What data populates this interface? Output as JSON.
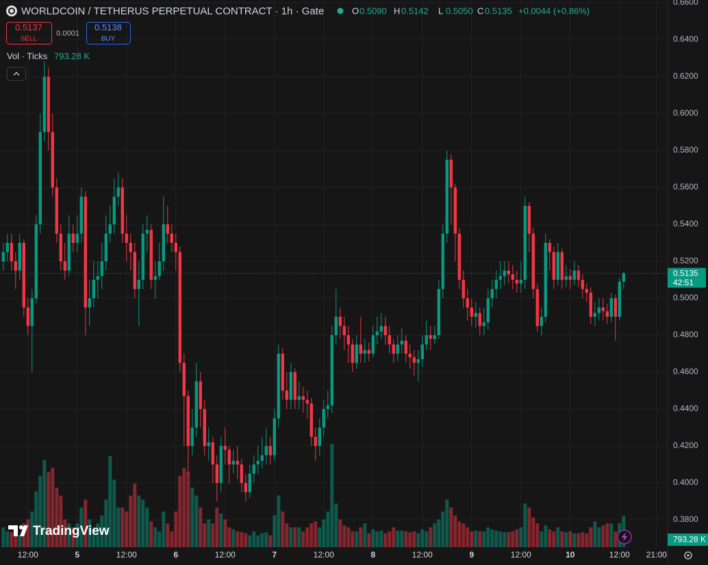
{
  "chart_data": {
    "type": "candlestick",
    "title": "WORLDCOIN / TETHERUS PERPETUAL CONTRACT · 1h · Gate",
    "ohlc_letters": [
      "O",
      "H",
      "L",
      "C"
    ],
    "ohlc_labels": [
      "0.5090",
      "0.5142",
      "0.5050",
      "0.5135"
    ],
    "change": "+0.0044 (+0.86%)",
    "sell_price": "0.5137",
    "sell": "SELL",
    "spread": "0.0001",
    "buy_price": "0.5138",
    "buy": "BUY",
    "volume_title": "Vol · Ticks",
    "volume_label": "793.28 K",
    "countdown": "42:51",
    "brand": "TradingView",
    "up_color": "#089981",
    "down_color": "#f23645",
    "grid": true,
    "xlim": [
      -18.8,
      143.7
    ],
    "ylim": [
      0.3652,
      0.6615
    ],
    "volume_ylim": [
      0,
      3100
    ],
    "xticks": [
      {
        "value": -12,
        "label": "12:00"
      },
      {
        "value": 0,
        "label": "5"
      },
      {
        "value": 12,
        "label": "12:00"
      },
      {
        "value": 24,
        "label": "6"
      },
      {
        "value": 36,
        "label": "12:00"
      },
      {
        "value": 48,
        "label": "7"
      },
      {
        "value": 60,
        "label": "12:00"
      },
      {
        "value": 72,
        "label": "8"
      },
      {
        "value": 84,
        "label": "12:00"
      },
      {
        "value": 96,
        "label": "9"
      },
      {
        "value": 108,
        "label": "12:00"
      },
      {
        "value": 120,
        "label": "10"
      },
      {
        "value": 132,
        "label": "12:00"
      },
      {
        "value": 141,
        "label": "21:00"
      }
    ],
    "yticks": [
      {
        "value": 0.38,
        "label": "0.3800"
      },
      {
        "value": 0.4,
        "label": "0.4000"
      },
      {
        "value": 0.42,
        "label": "0.4200"
      },
      {
        "value": 0.44,
        "label": "0.4400"
      },
      {
        "value": 0.46,
        "label": "0.4600"
      },
      {
        "value": 0.48,
        "label": "0.4800"
      },
      {
        "value": 0.5,
        "label": "0.5000"
      },
      {
        "value": 0.52,
        "label": "0.5200"
      },
      {
        "value": 0.54,
        "label": "0.5400"
      },
      {
        "value": 0.56,
        "label": "0.5600"
      },
      {
        "value": 0.58,
        "label": "0.5800"
      },
      {
        "value": 0.6,
        "label": "0.6000"
      },
      {
        "value": 0.62,
        "label": "0.6200"
      },
      {
        "value": 0.64,
        "label": "0.6400"
      },
      {
        "value": 0.66,
        "label": "0.6600"
      }
    ],
    "x": [
      -18,
      -17,
      -16,
      -15,
      -14,
      -13,
      -12,
      -11,
      -10,
      -9,
      -8,
      -7,
      -6,
      -5,
      -4,
      -3,
      -2,
      -1,
      0,
      1,
      2,
      3,
      4,
      5,
      6,
      7,
      8,
      9,
      10,
      11,
      12,
      13,
      14,
      15,
      16,
      17,
      18,
      19,
      20,
      21,
      22,
      23,
      24,
      25,
      26,
      27,
      28,
      29,
      30,
      31,
      32,
      33,
      34,
      35,
      36,
      37,
      38,
      39,
      40,
      41,
      42,
      43,
      44,
      45,
      46,
      47,
      48,
      49,
      50,
      51,
      52,
      53,
      54,
      55,
      56,
      57,
      58,
      59,
      60,
      61,
      62,
      63,
      64,
      65,
      66,
      67,
      68,
      69,
      70,
      71,
      72,
      73,
      74,
      75,
      76,
      77,
      78,
      79,
      80,
      81,
      82,
      83,
      84,
      85,
      86,
      87,
      88,
      89,
      90,
      91,
      92,
      93,
      94,
      95,
      96,
      97,
      98,
      99,
      100,
      101,
      102,
      103,
      104,
      105,
      106,
      107,
      108,
      109,
      110,
      111,
      112,
      113,
      114,
      115,
      116,
      117,
      118,
      119,
      120,
      121,
      122,
      123,
      124,
      125,
      126,
      127,
      128,
      129,
      130,
      131,
      132,
      133
    ],
    "open": [
      0.52,
      0.525,
      0.53,
      0.52,
      0.515,
      0.53,
      0.495,
      0.485,
      0.5,
      0.54,
      0.59,
      0.62,
      0.59,
      0.56,
      0.535,
      0.52,
      0.515,
      0.535,
      0.53,
      0.535,
      0.555,
      0.495,
      0.5,
      0.51,
      0.512,
      0.52,
      0.535,
      0.54,
      0.555,
      0.56,
      0.535,
      0.53,
      0.525,
      0.505,
      0.51,
      0.535,
      0.537,
      0.51,
      0.512,
      0.52,
      0.54,
      0.535,
      0.53,
      0.525,
      0.465,
      0.447,
      0.42,
      0.43,
      0.455,
      0.44,
      0.42,
      0.422,
      0.41,
      0.4,
      0.42,
      0.418,
      0.41,
      0.412,
      0.41,
      0.4,
      0.395,
      0.405,
      0.41,
      0.412,
      0.415,
      0.42,
      0.415,
      0.435,
      0.47,
      0.45,
      0.445,
      0.46,
      0.445,
      0.447,
      0.445,
      0.443,
      0.425,
      0.42,
      0.43,
      0.44,
      0.442,
      0.48,
      0.49,
      0.485,
      0.48,
      0.475,
      0.465,
      0.475,
      0.47,
      0.472,
      0.47,
      0.48,
      0.482,
      0.485,
      0.48,
      0.475,
      0.47,
      0.475,
      0.477,
      0.47,
      0.468,
      0.465,
      0.467,
      0.475,
      0.48,
      0.478,
      0.48,
      0.505,
      0.535,
      0.575,
      0.56,
      0.535,
      0.51,
      0.5,
      0.495,
      0.49,
      0.492,
      0.485,
      0.487,
      0.5,
      0.505,
      0.51,
      0.512,
      0.515,
      0.513,
      0.51,
      0.508,
      0.51,
      0.55,
      0.535,
      0.505,
      0.485,
      0.49,
      0.53,
      0.525,
      0.51,
      0.525,
      0.51,
      0.512,
      0.51,
      0.515,
      0.51,
      0.505,
      0.503,
      0.49,
      0.492,
      0.495,
      0.493,
      0.49,
      0.5,
      0.49,
      0.509
    ],
    "high": [
      0.53,
      0.535,
      0.535,
      0.525,
      0.535,
      0.532,
      0.5,
      0.505,
      0.545,
      0.6,
      0.628,
      0.625,
      0.6,
      0.565,
      0.54,
      0.53,
      0.545,
      0.54,
      0.545,
      0.56,
      0.558,
      0.51,
      0.52,
      0.52,
      0.53,
      0.545,
      0.55,
      0.565,
      0.568,
      0.565,
      0.545,
      0.535,
      0.53,
      0.52,
      0.54,
      0.545,
      0.54,
      0.52,
      0.53,
      0.555,
      0.55,
      0.54,
      0.535,
      0.528,
      0.47,
      0.45,
      0.44,
      0.465,
      0.46,
      0.445,
      0.43,
      0.425,
      0.415,
      0.425,
      0.43,
      0.42,
      0.418,
      0.42,
      0.413,
      0.405,
      0.41,
      0.415,
      0.42,
      0.425,
      0.43,
      0.425,
      0.44,
      0.475,
      0.473,
      0.46,
      0.465,
      0.462,
      0.455,
      0.452,
      0.45,
      0.446,
      0.43,
      0.435,
      0.445,
      0.45,
      0.485,
      0.505,
      0.495,
      0.49,
      0.485,
      0.478,
      0.48,
      0.49,
      0.478,
      0.476,
      0.485,
      0.49,
      0.492,
      0.49,
      0.485,
      0.478,
      0.48,
      0.484,
      0.48,
      0.475,
      0.472,
      0.472,
      0.48,
      0.488,
      0.485,
      0.485,
      0.51,
      0.54,
      0.58,
      0.578,
      0.562,
      0.538,
      0.515,
      0.505,
      0.5,
      0.498,
      0.495,
      0.495,
      0.505,
      0.51,
      0.515,
      0.52,
      0.52,
      0.52,
      0.518,
      0.515,
      0.52,
      0.555,
      0.552,
      0.538,
      0.508,
      0.495,
      0.535,
      0.532,
      0.528,
      0.53,
      0.527,
      0.518,
      0.516,
      0.52,
      0.518,
      0.513,
      0.508,
      0.506,
      0.498,
      0.5,
      0.5,
      0.497,
      0.503,
      0.502,
      0.511,
      0.5142
    ],
    "low": [
      0.515,
      0.52,
      0.515,
      0.505,
      0.51,
      0.49,
      0.48,
      0.46,
      0.497,
      0.535,
      0.585,
      0.58,
      0.555,
      0.53,
      0.515,
      0.51,
      0.512,
      0.525,
      0.525,
      0.53,
      0.48,
      0.485,
      0.495,
      0.5,
      0.505,
      0.515,
      0.53,
      0.535,
      0.55,
      0.53,
      0.52,
      0.515,
      0.5,
      0.485,
      0.505,
      0.525,
      0.505,
      0.5,
      0.51,
      0.515,
      0.53,
      0.525,
      0.515,
      0.46,
      0.42,
      0.405,
      0.415,
      0.425,
      0.43,
      0.415,
      0.412,
      0.4,
      0.39,
      0.395,
      0.41,
      0.4,
      0.405,
      0.402,
      0.395,
      0.39,
      0.392,
      0.4,
      0.405,
      0.408,
      0.41,
      0.41,
      0.412,
      0.43,
      0.445,
      0.44,
      0.44,
      0.44,
      0.44,
      0.438,
      0.435,
      0.42,
      0.412,
      0.415,
      0.425,
      0.435,
      0.438,
      0.475,
      0.478,
      0.472,
      0.465,
      0.46,
      0.462,
      0.465,
      0.465,
      0.466,
      0.468,
      0.475,
      0.478,
      0.475,
      0.47,
      0.465,
      0.466,
      0.47,
      0.465,
      0.462,
      0.458,
      0.455,
      0.463,
      0.472,
      0.472,
      0.475,
      0.478,
      0.5,
      0.53,
      0.54,
      0.52,
      0.505,
      0.495,
      0.488,
      0.485,
      0.484,
      0.48,
      0.48,
      0.483,
      0.495,
      0.5,
      0.505,
      0.507,
      0.508,
      0.505,
      0.503,
      0.503,
      0.505,
      0.525,
      0.5,
      0.482,
      0.48,
      0.487,
      0.515,
      0.505,
      0.507,
      0.505,
      0.506,
      0.505,
      0.507,
      0.506,
      0.5,
      0.498,
      0.486,
      0.485,
      0.488,
      0.488,
      0.486,
      0.487,
      0.477,
      0.488,
      0.505
    ],
    "close": [
      0.525,
      0.53,
      0.52,
      0.515,
      0.53,
      0.495,
      0.485,
      0.5,
      0.54,
      0.59,
      0.62,
      0.59,
      0.56,
      0.535,
      0.52,
      0.515,
      0.535,
      0.53,
      0.535,
      0.555,
      0.495,
      0.5,
      0.51,
      0.512,
      0.52,
      0.535,
      0.54,
      0.555,
      0.56,
      0.535,
      0.53,
      0.525,
      0.505,
      0.51,
      0.535,
      0.537,
      0.51,
      0.512,
      0.52,
      0.54,
      0.535,
      0.53,
      0.525,
      0.465,
      0.447,
      0.42,
      0.43,
      0.455,
      0.44,
      0.42,
      0.422,
      0.41,
      0.4,
      0.42,
      0.418,
      0.41,
      0.412,
      0.41,
      0.4,
      0.395,
      0.405,
      0.41,
      0.412,
      0.415,
      0.42,
      0.415,
      0.435,
      0.47,
      0.45,
      0.445,
      0.46,
      0.445,
      0.447,
      0.445,
      0.443,
      0.425,
      0.42,
      0.43,
      0.44,
      0.442,
      0.48,
      0.49,
      0.485,
      0.48,
      0.475,
      0.465,
      0.475,
      0.47,
      0.472,
      0.47,
      0.48,
      0.482,
      0.485,
      0.48,
      0.475,
      0.47,
      0.475,
      0.477,
      0.47,
      0.468,
      0.465,
      0.467,
      0.475,
      0.48,
      0.478,
      0.48,
      0.505,
      0.535,
      0.575,
      0.56,
      0.535,
      0.51,
      0.5,
      0.495,
      0.49,
      0.492,
      0.485,
      0.487,
      0.5,
      0.505,
      0.51,
      0.512,
      0.515,
      0.513,
      0.51,
      0.508,
      0.51,
      0.55,
      0.535,
      0.505,
      0.485,
      0.49,
      0.53,
      0.525,
      0.51,
      0.525,
      0.51,
      0.512,
      0.51,
      0.515,
      0.51,
      0.505,
      0.503,
      0.49,
      0.492,
      0.495,
      0.493,
      0.49,
      0.5,
      0.49,
      0.509,
      0.5135
    ],
    "volume": [
      500,
      400,
      380,
      350,
      300,
      600,
      700,
      900,
      1400,
      1800,
      2200,
      1900,
      2000,
      1500,
      1300,
      700,
      600,
      500,
      600,
      1000,
      1200,
      700,
      500,
      600,
      800,
      1200,
      2300,
      1700,
      1000,
      1000,
      900,
      1300,
      1600,
      1300,
      1200,
      1000,
      650,
      500,
      400,
      900,
      600,
      400,
      900,
      1800,
      2000,
      1900,
      1500,
      1300,
      1000,
      600,
      700,
      600,
      1000,
      850,
      700,
      500,
      450,
      400,
      380,
      350,
      300,
      400,
      300,
      350,
      380,
      300,
      800,
      1300,
      900,
      600,
      500,
      500,
      500,
      400,
      500,
      600,
      650,
      500,
      700,
      900,
      2600,
      1100,
      700,
      550,
      500,
      400,
      400,
      500,
      600,
      350,
      450,
      400,
      420,
      350,
      400,
      500,
      420,
      420,
      400,
      380,
      400,
      350,
      450,
      400,
      500,
      600,
      700,
      900,
      1200,
      1000,
      800,
      650,
      600,
      500,
      400,
      420,
      400,
      400,
      500,
      450,
      420,
      400,
      380,
      380,
      400,
      450,
      500,
      1100,
      1000,
      750,
      600,
      400,
      550,
      450,
      400,
      500,
      400,
      380,
      400,
      350,
      350,
      380,
      350,
      500,
      650,
      500,
      550,
      600,
      600,
      400,
      600,
      793.28
    ]
  }
}
